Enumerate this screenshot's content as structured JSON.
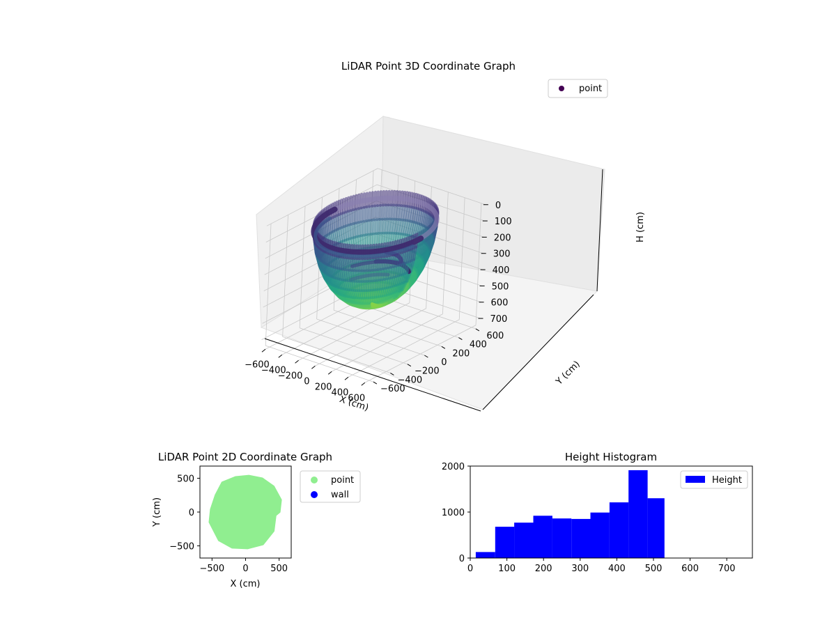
{
  "colors": {
    "point_2d": "#90ee90",
    "wall_2d": "#0000ff",
    "hist_bar": "#0000ff",
    "point_3d_legend": "#440154",
    "pane": "#f2f2f2",
    "grid": "#c8c8c8"
  },
  "chart_data": [
    {
      "type": "scatter",
      "projection": "3d",
      "title": "LiDAR Point 3D Coordinate Graph",
      "xlabel": "X (cm)",
      "ylabel": "Y (cm)",
      "zlabel": "H (cm)",
      "xlim": [
        -650,
        650
      ],
      "ylim": [
        -650,
        650
      ],
      "zlim": [
        0,
        750
      ],
      "z_inverted": true,
      "x_ticks": [
        "−600",
        "−400",
        "−200",
        "0",
        "200",
        "400",
        "600"
      ],
      "y_ticks": [
        "−600",
        "−400",
        "−200",
        "0",
        "200",
        "400",
        "600"
      ],
      "z_ticks": [
        "0",
        "100",
        "200",
        "300",
        "400",
        "500",
        "600",
        "700"
      ],
      "colormap": "viridis",
      "legend": [
        "point"
      ],
      "legend_position": "upper-right",
      "grid": true,
      "shape": "bowl of radius ~500 cm with height rising toward the rim; walls from ~0 to ~700 cm",
      "series": [
        {
          "name": "point",
          "rim_radius": 520,
          "depth": 700
        }
      ]
    },
    {
      "type": "scatter",
      "title": "LiDAR Point 2D Coordinate Graph",
      "xlabel": "X (cm)",
      "ylabel": "Y (cm)",
      "xlim": [
        -680,
        680
      ],
      "ylim": [
        -680,
        680
      ],
      "x_ticks": [
        "−500",
        "0",
        "500"
      ],
      "y_ticks": [
        "−500",
        "0",
        "500"
      ],
      "legend": [
        "point",
        "wall"
      ],
      "legend_position": "outside-right",
      "series": [
        {
          "name": "point",
          "region": "filled blob radius ~500 cm centered at (0,0)",
          "boundary": [
            [
              -150,
              520
            ],
            [
              50,
              540
            ],
            [
              250,
              500
            ],
            [
              420,
              380
            ],
            [
              530,
              180
            ],
            [
              510,
              0
            ],
            [
              450,
              -50
            ],
            [
              420,
              -280
            ],
            [
              260,
              -480
            ],
            [
              30,
              -540
            ],
            [
              -200,
              -530
            ],
            [
              -400,
              -420
            ],
            [
              -540,
              -150
            ],
            [
              -520,
              40
            ],
            [
              -450,
              250
            ],
            [
              -350,
              440
            ]
          ]
        },
        {
          "name": "wall",
          "points": []
        }
      ]
    },
    {
      "type": "bar",
      "subtype": "histogram",
      "title": "Height Histogram",
      "xlabel": "",
      "ylabel": "",
      "xlim": [
        0,
        770
      ],
      "ylim": [
        0,
        2000
      ],
      "x_ticks": [
        "0",
        "100",
        "200",
        "300",
        "400",
        "500",
        "600",
        "700"
      ],
      "y_ticks": [
        "0",
        "1000",
        "2000"
      ],
      "legend": [
        "Height"
      ],
      "legend_position": "upper-right",
      "bin_edges": [
        15,
        68,
        120,
        172,
        224,
        276,
        328,
        380,
        432,
        484,
        530
      ],
      "values": [
        130,
        680,
        770,
        920,
        860,
        850,
        990,
        1210,
        1910,
        1300
      ]
    }
  ]
}
